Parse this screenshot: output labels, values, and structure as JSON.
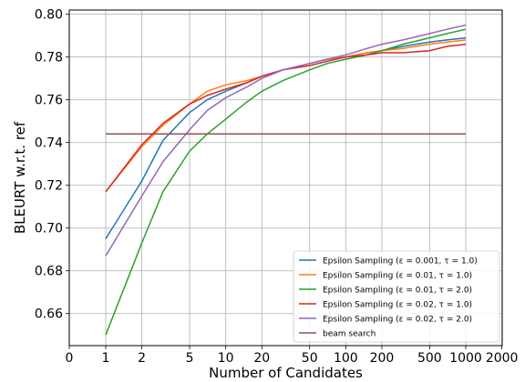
{
  "chart_data": {
    "type": "line",
    "xlabel": "Number of Candidates",
    "ylabel": "BLEURT w.r.t. ref",
    "x_scale": "log",
    "x_ticks": [
      {
        "value": 0,
        "label": "0"
      },
      {
        "value": 1,
        "label": "1"
      },
      {
        "value": 2,
        "label": "2"
      },
      {
        "value": 5,
        "label": "5"
      },
      {
        "value": 10,
        "label": "10"
      },
      {
        "value": 20,
        "label": "20"
      },
      {
        "value": 50,
        "label": "50"
      },
      {
        "value": 100,
        "label": "100"
      },
      {
        "value": 200,
        "label": "200"
      },
      {
        "value": 500,
        "label": "500"
      },
      {
        "value": 1000,
        "label": "1000"
      },
      {
        "value": 2000,
        "label": "2000"
      }
    ],
    "y_ticks": [
      0.66,
      0.68,
      0.7,
      0.72,
      0.74,
      0.76,
      0.78,
      0.8
    ],
    "y_tick_labels": [
      "0.66",
      "0.68",
      "0.70",
      "0.72",
      "0.74",
      "0.76",
      "0.78",
      "0.80"
    ],
    "ylim": [
      0.645,
      0.802
    ],
    "grid": true,
    "legend_position": "bottom-right",
    "series": [
      {
        "name": "Epsilon Sampling (ε = 0.001, τ = 1.0)",
        "color": "#1f77b4",
        "x": [
          1,
          2,
          3,
          5,
          7,
          10,
          15,
          20,
          30,
          50,
          70,
          100,
          150,
          200,
          300,
          500,
          700,
          1000
        ],
        "y": [
          0.695,
          0.722,
          0.741,
          0.754,
          0.76,
          0.764,
          0.768,
          0.771,
          0.774,
          0.777,
          0.779,
          0.78,
          0.782,
          0.783,
          0.785,
          0.787,
          0.788,
          0.789
        ]
      },
      {
        "name": "Epsilon Sampling (ε = 0.01, τ = 1.0)",
        "color": "#ff7f0e",
        "x": [
          1,
          2,
          3,
          5,
          7,
          10,
          15,
          20,
          30,
          50,
          70,
          100,
          150,
          200,
          300,
          500,
          700,
          1000
        ],
        "y": [
          0.717,
          0.738,
          0.748,
          0.758,
          0.764,
          0.767,
          0.769,
          0.771,
          0.774,
          0.777,
          0.779,
          0.78,
          0.782,
          0.783,
          0.784,
          0.786,
          0.787,
          0.788
        ]
      },
      {
        "name": "Epsilon Sampling (ε = 0.01, τ = 2.0)",
        "color": "#2ca02c",
        "x": [
          1,
          2,
          3,
          5,
          7,
          10,
          15,
          20,
          30,
          50,
          70,
          100,
          150,
          200,
          300,
          500,
          700,
          1000
        ],
        "y": [
          0.65,
          0.693,
          0.717,
          0.736,
          0.744,
          0.751,
          0.759,
          0.764,
          0.769,
          0.774,
          0.777,
          0.779,
          0.781,
          0.783,
          0.786,
          0.789,
          0.791,
          0.793
        ]
      },
      {
        "name": "Epsilon Sampling (ε = 0.02, τ = 1.0)",
        "color": "#d62728",
        "x": [
          1,
          2,
          3,
          5,
          7,
          10,
          15,
          20,
          30,
          50,
          70,
          100,
          150,
          200,
          300,
          500,
          700,
          1000
        ],
        "y": [
          0.717,
          0.739,
          0.749,
          0.758,
          0.762,
          0.765,
          0.768,
          0.771,
          0.774,
          0.776,
          0.778,
          0.78,
          0.781,
          0.782,
          0.782,
          0.783,
          0.785,
          0.786
        ]
      },
      {
        "name": "Epsilon Sampling (ε = 0.02, τ = 2.0)",
        "color": "#9467bd",
        "x": [
          1,
          2,
          3,
          5,
          7,
          10,
          15,
          20,
          30,
          50,
          70,
          100,
          150,
          200,
          300,
          500,
          700,
          1000
        ],
        "y": [
          0.687,
          0.715,
          0.731,
          0.746,
          0.755,
          0.761,
          0.766,
          0.77,
          0.774,
          0.777,
          0.779,
          0.781,
          0.784,
          0.786,
          0.788,
          0.791,
          0.793,
          0.795
        ]
      },
      {
        "name": "beam search",
        "color": "#8c564b",
        "x": [
          1,
          1000
        ],
        "y": [
          0.744,
          0.744
        ]
      }
    ]
  }
}
